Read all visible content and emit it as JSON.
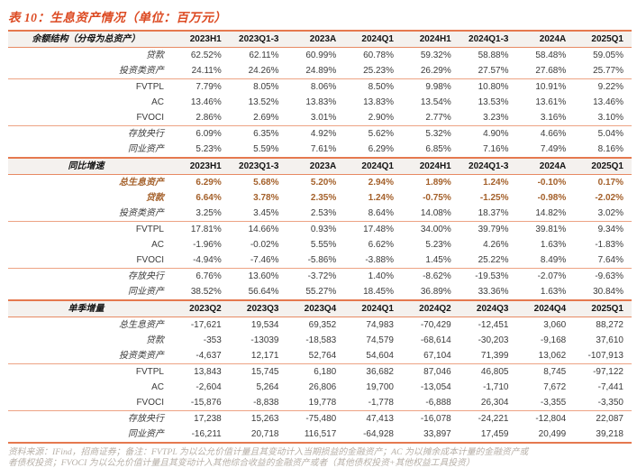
{
  "title": "表 10：生息资产情况（单位：百万元）",
  "colors": {
    "title_accent": "#DC4A22",
    "rule_thick": "#E5794F",
    "rule_thin": "#EDA384",
    "section_header_bg": "#F4F1EE",
    "highlight_text": "#A4602A",
    "source_text": "#B7B0A8"
  },
  "table": {
    "sections": [
      {
        "header": "余额结构（分母为总资产）",
        "columns": [
          "2023H1",
          "2023Q1-3",
          "2023A",
          "2024Q1",
          "2024H1",
          "2024Q1-3",
          "2024A",
          "2025Q1"
        ],
        "rows": [
          {
            "label": "贷款",
            "indent": false,
            "highlight": false,
            "border_below": false,
            "values": [
              "62.52%",
              "62.11%",
              "60.99%",
              "60.78%",
              "59.32%",
              "58.88%",
              "58.48%",
              "59.05%"
            ]
          },
          {
            "label": "投资类资产",
            "indent": false,
            "highlight": false,
            "border_below": true,
            "values": [
              "24.11%",
              "24.26%",
              "24.89%",
              "25.23%",
              "26.29%",
              "27.57%",
              "27.68%",
              "25.77%"
            ]
          },
          {
            "label": "FVTPL",
            "indent": true,
            "highlight": false,
            "border_below": false,
            "values": [
              "7.79%",
              "8.05%",
              "8.06%",
              "8.50%",
              "9.98%",
              "10.80%",
              "10.91%",
              "9.22%"
            ]
          },
          {
            "label": "AC",
            "indent": true,
            "highlight": false,
            "border_below": false,
            "values": [
              "13.46%",
              "13.52%",
              "13.83%",
              "13.83%",
              "13.54%",
              "13.53%",
              "13.61%",
              "13.46%"
            ]
          },
          {
            "label": "FVOCI",
            "indent": true,
            "highlight": false,
            "border_below": true,
            "values": [
              "2.86%",
              "2.69%",
              "3.01%",
              "2.90%",
              "2.77%",
              "3.23%",
              "3.16%",
              "3.10%"
            ]
          },
          {
            "label": "存放央行",
            "indent": false,
            "highlight": false,
            "border_below": false,
            "values": [
              "6.09%",
              "6.35%",
              "4.92%",
              "5.62%",
              "5.32%",
              "4.90%",
              "4.66%",
              "5.04%"
            ]
          },
          {
            "label": "同业资产",
            "indent": false,
            "highlight": false,
            "border_below": false,
            "values": [
              "5.23%",
              "5.59%",
              "7.61%",
              "6.29%",
              "6.85%",
              "7.16%",
              "7.49%",
              "8.16%"
            ]
          }
        ]
      },
      {
        "header": "同比增速",
        "columns": [
          "2023H1",
          "2023Q1-3",
          "2023A",
          "2024Q1",
          "2024H1",
          "2024Q1-3",
          "2024A",
          "2025Q1"
        ],
        "rows": [
          {
            "label": "总生息资产",
            "indent": false,
            "highlight": true,
            "border_below": false,
            "values": [
              "6.29%",
              "5.68%",
              "5.20%",
              "2.94%",
              "1.89%",
              "1.24%",
              "-0.10%",
              "0.17%"
            ]
          },
          {
            "label": "贷款",
            "indent": false,
            "highlight": true,
            "border_below": false,
            "values": [
              "6.64%",
              "3.78%",
              "2.35%",
              "1.24%",
              "-0.75%",
              "-1.25%",
              "-0.98%",
              "-2.02%"
            ]
          },
          {
            "label": "投资类资产",
            "indent": false,
            "highlight": false,
            "border_below": true,
            "values": [
              "3.25%",
              "3.45%",
              "2.53%",
              "8.64%",
              "14.08%",
              "18.37%",
              "14.82%",
              "3.02%"
            ]
          },
          {
            "label": "FVTPL",
            "indent": true,
            "highlight": false,
            "border_below": false,
            "values": [
              "17.81%",
              "14.66%",
              "0.93%",
              "17.48%",
              "34.00%",
              "39.79%",
              "39.81%",
              "9.34%"
            ]
          },
          {
            "label": "AC",
            "indent": true,
            "highlight": false,
            "border_below": false,
            "values": [
              "-1.96%",
              "-0.02%",
              "5.55%",
              "6.62%",
              "5.23%",
              "4.26%",
              "1.63%",
              "-1.83%"
            ]
          },
          {
            "label": "FVOCI",
            "indent": true,
            "highlight": false,
            "border_below": true,
            "values": [
              "-4.94%",
              "-7.46%",
              "-5.86%",
              "-3.88%",
              "1.45%",
              "25.22%",
              "8.49%",
              "7.64%"
            ]
          },
          {
            "label": "存放央行",
            "indent": false,
            "highlight": false,
            "border_below": false,
            "values": [
              "6.76%",
              "13.60%",
              "-3.72%",
              "1.40%",
              "-8.62%",
              "-19.53%",
              "-2.07%",
              "-9.63%"
            ]
          },
          {
            "label": "同业资产",
            "indent": false,
            "highlight": false,
            "border_below": false,
            "values": [
              "38.52%",
              "56.64%",
              "55.27%",
              "18.45%",
              "36.89%",
              "33.36%",
              "1.63%",
              "30.84%"
            ]
          }
        ]
      },
      {
        "header": "单季增量",
        "columns": [
          "2023Q2",
          "2023Q3",
          "2023Q4",
          "2024Q1",
          "2024Q2",
          "2024Q3",
          "2024Q4",
          "2025Q1"
        ],
        "rows": [
          {
            "label": "总生息资产",
            "indent": false,
            "highlight": false,
            "border_below": false,
            "values": [
              "-17,621",
              "19,534",
              "69,352",
              "74,983",
              "-70,429",
              "-12,451",
              "3,060",
              "88,272"
            ]
          },
          {
            "label": "贷款",
            "indent": false,
            "highlight": false,
            "border_below": false,
            "values": [
              "-353",
              "-13039",
              "-18,583",
              "74,579",
              "-68,614",
              "-30,203",
              "-9,168",
              "37,610"
            ]
          },
          {
            "label": "投资类资产",
            "indent": false,
            "highlight": false,
            "border_below": true,
            "values": [
              "-4,637",
              "12,171",
              "52,764",
              "54,604",
              "67,104",
              "71,399",
              "13,062",
              "-107,913"
            ]
          },
          {
            "label": "FVTPL",
            "indent": true,
            "highlight": false,
            "border_below": false,
            "values": [
              "13,843",
              "15,745",
              "6,180",
              "36,682",
              "87,046",
              "46,805",
              "8,745",
              "-97,122"
            ]
          },
          {
            "label": "AC",
            "indent": true,
            "highlight": false,
            "border_below": false,
            "values": [
              "-2,604",
              "5,264",
              "26,806",
              "19,700",
              "-13,054",
              "-1,710",
              "7,672",
              "-7,441"
            ]
          },
          {
            "label": "FVOCI",
            "indent": true,
            "highlight": false,
            "border_below": true,
            "values": [
              "-15,876",
              "-8,838",
              "19,778",
              "-1,778",
              "-6,888",
              "26,304",
              "-3,355",
              "-3,350"
            ]
          },
          {
            "label": "存放央行",
            "indent": false,
            "highlight": false,
            "border_below": false,
            "values": [
              "17,238",
              "15,263",
              "-75,480",
              "47,413",
              "-16,078",
              "-24,221",
              "-12,804",
              "22,087"
            ]
          },
          {
            "label": "同业资产",
            "indent": false,
            "highlight": false,
            "border_below": false,
            "values": [
              "-16,211",
              "20,718",
              "116,517",
              "-64,928",
              "33,897",
              "17,459",
              "20,499",
              "39,218"
            ]
          }
        ]
      }
    ]
  },
  "footer": {
    "line1": "资料来源：IFind，招商证券；备注：FVTPL 为以公允价值计量且其变动计入当期损益的金融资产；AC 为以摊余成本计量的金融资产或",
    "line2": "者债权投资；FVOCI 为以公允价值计量且其变动计入其他综合收益的金融资产或者（其他债权投资+其他权益工具投资）"
  }
}
